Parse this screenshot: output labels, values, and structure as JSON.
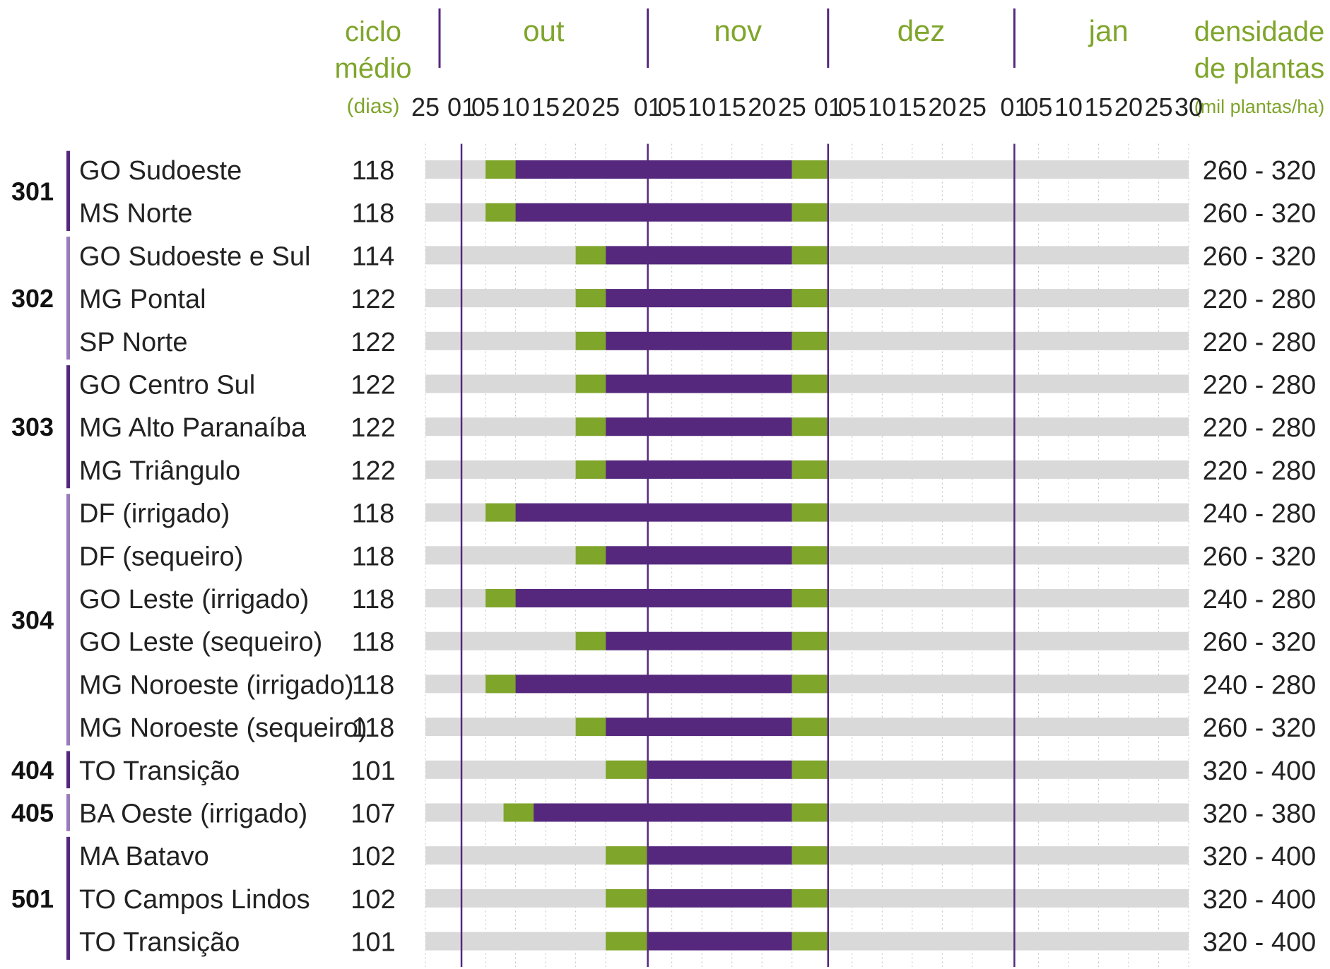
{
  "chart_data": {
    "type": "gantt",
    "header": {
      "cycle_label": [
        "ciclo",
        "médio",
        "(dias)"
      ],
      "density_label": [
        "densidade",
        "de plantas",
        "(mil plantas/ha)"
      ]
    },
    "months": [
      "out",
      "nov",
      "dez",
      "jan"
    ],
    "day_ticks": [
      "25",
      "01",
      "05",
      "10",
      "15",
      "20",
      "25",
      "01",
      "05",
      "10",
      "15",
      "20",
      "25",
      "01",
      "05",
      "10",
      "15",
      "20",
      "25",
      "01",
      "05",
      "10",
      "15",
      "20",
      "25",
      "30"
    ],
    "axis_range": [
      "09-25",
      "01-30"
    ],
    "month_boundaries": [
      "10-01",
      "11-01",
      "12-01",
      "01-01"
    ],
    "colors": {
      "background_bar": "#d9d9d9",
      "recommended_window": "#55287e",
      "edge_window": "#7fa52b",
      "header_text": "#7fa52b",
      "month_line": "#55287e",
      "group_bar_dark": "#55287e",
      "group_bar_light": "#9a7bbd"
    },
    "groups": [
      {
        "id": "301",
        "rows": 2,
        "shade": "dark"
      },
      {
        "id": "302",
        "rows": 3,
        "shade": "light"
      },
      {
        "id": "303",
        "rows": 3,
        "shade": "dark"
      },
      {
        "id": "304",
        "rows": 6,
        "shade": "light"
      },
      {
        "id": "404",
        "rows": 1,
        "shade": "dark"
      },
      {
        "id": "405",
        "rows": 1,
        "shade": "light"
      },
      {
        "id": "501",
        "rows": 3,
        "shade": "dark"
      }
    ],
    "rows": [
      {
        "region": "GO Sudoeste",
        "cycle": "118",
        "density": "260 - 320",
        "green_start": "10-05",
        "purple_start": "10-10",
        "purple_end": "11-25",
        "green_end": "12-01"
      },
      {
        "region": "MS Norte",
        "cycle": "118",
        "density": "260 - 320",
        "green_start": "10-05",
        "purple_start": "10-10",
        "purple_end": "11-25",
        "green_end": "12-01"
      },
      {
        "region": "GO Sudoeste e Sul",
        "cycle": "114",
        "density": "260 - 320",
        "green_start": "10-20",
        "purple_start": "10-25",
        "purple_end": "11-25",
        "green_end": "12-01"
      },
      {
        "region": "MG Pontal",
        "cycle": "122",
        "density": "220 - 280",
        "green_start": "10-20",
        "purple_start": "10-25",
        "purple_end": "11-25",
        "green_end": "12-01"
      },
      {
        "region": "SP Norte",
        "cycle": "122",
        "density": "220 - 280",
        "green_start": "10-20",
        "purple_start": "10-25",
        "purple_end": "11-25",
        "green_end": "12-01"
      },
      {
        "region": "GO Centro Sul",
        "cycle": "122",
        "density": "220 - 280",
        "green_start": "10-20",
        "purple_start": "10-25",
        "purple_end": "11-25",
        "green_end": "12-01"
      },
      {
        "region": "MG Alto Paranaíba",
        "cycle": "122",
        "density": "220 - 280",
        "green_start": "10-20",
        "purple_start": "10-25",
        "purple_end": "11-25",
        "green_end": "12-01"
      },
      {
        "region": "MG Triângulo",
        "cycle": "122",
        "density": "220 - 280",
        "green_start": "10-20",
        "purple_start": "10-25",
        "purple_end": "11-25",
        "green_end": "12-01"
      },
      {
        "region": "DF (irrigado)",
        "cycle": "118",
        "density": "240 - 280",
        "green_start": "10-05",
        "purple_start": "10-10",
        "purple_end": "11-25",
        "green_end": "12-01"
      },
      {
        "region": "DF (sequeiro)",
        "cycle": "118",
        "density": "260 - 320",
        "green_start": "10-20",
        "purple_start": "10-25",
        "purple_end": "11-25",
        "green_end": "12-01"
      },
      {
        "region": "GO Leste (irrigado)",
        "cycle": "118",
        "density": "240 - 280",
        "green_start": "10-05",
        "purple_start": "10-10",
        "purple_end": "11-25",
        "green_end": "12-01"
      },
      {
        "region": "GO Leste (sequeiro)",
        "cycle": "118",
        "density": "260 - 320",
        "green_start": "10-20",
        "purple_start": "10-25",
        "purple_end": "11-25",
        "green_end": "12-01"
      },
      {
        "region": "MG Noroeste (irrigado)",
        "cycle": "118",
        "density": "240 - 280",
        "green_start": "10-05",
        "purple_start": "10-10",
        "purple_end": "11-25",
        "green_end": "12-01"
      },
      {
        "region": "MG Noroeste (sequeiro)",
        "cycle": "118",
        "density": "260 - 320",
        "green_start": "10-20",
        "purple_start": "10-25",
        "purple_end": "11-25",
        "green_end": "12-01"
      },
      {
        "region": "TO Transição",
        "cycle": "101",
        "density": "320 - 400",
        "green_start": "10-25",
        "purple_start": "11-01",
        "purple_end": "11-25",
        "green_end": "12-01"
      },
      {
        "region": "BA Oeste (irrigado)",
        "cycle": "107",
        "density": "320 - 380",
        "green_start": "10-08",
        "purple_start": "10-13",
        "purple_end": "11-25",
        "green_end": "12-01"
      },
      {
        "region": "MA Batavo",
        "cycle": "102",
        "density": "320 - 400",
        "green_start": "10-25",
        "purple_start": "11-01",
        "purple_end": "11-25",
        "green_end": "12-01"
      },
      {
        "region": "TO Campos Lindos",
        "cycle": "102",
        "density": "320 - 400",
        "green_start": "10-25",
        "purple_start": "11-01",
        "purple_end": "11-25",
        "green_end": "12-01"
      },
      {
        "region": "TO Transição",
        "cycle": "101",
        "density": "320 - 400",
        "green_start": "10-25",
        "purple_start": "11-01",
        "purple_end": "11-25",
        "green_end": "12-01"
      }
    ]
  }
}
